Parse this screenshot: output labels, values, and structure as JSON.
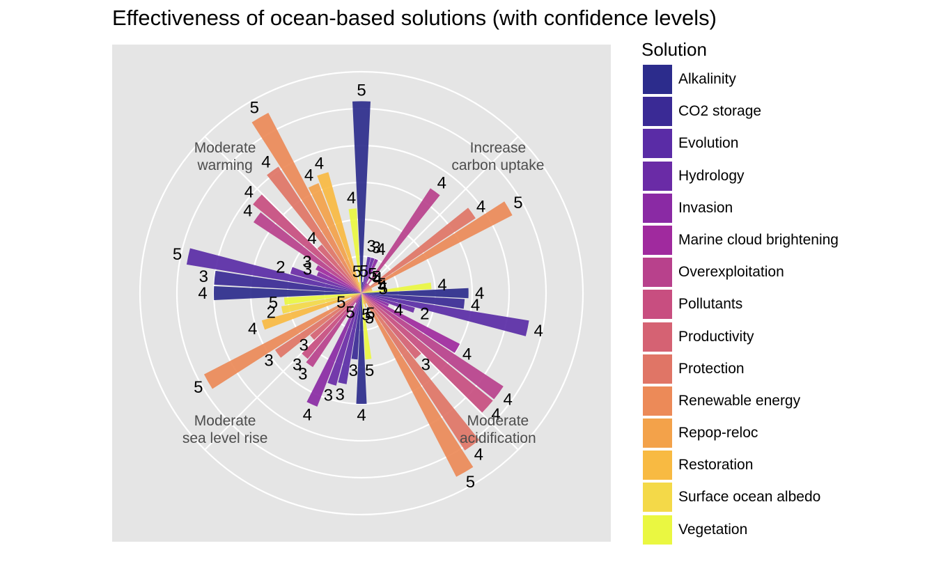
{
  "chart_data": {
    "type": "bar",
    "coord": "polar",
    "title": "Effectiveness of ocean-based solutions (with confidence levels)",
    "xlabel": "",
    "ylabel": "",
    "ylim": [
      0,
      6
    ],
    "grid": true,
    "legend": {
      "title": "Solution",
      "position": "right",
      "entries": [
        {
          "name": "Alkalinity",
          "color": "#2C2C8C"
        },
        {
          "name": "CO2 storage",
          "color": "#3A2A95"
        },
        {
          "name": "Evolution",
          "color": "#5A2CA6"
        },
        {
          "name": "Hydrology",
          "color": "#6A2BA6"
        },
        {
          "name": "Invasion",
          "color": "#8A2AA4"
        },
        {
          "name": "Marine cloud brightening",
          "color": "#A02A9E"
        },
        {
          "name": "Overexploitation",
          "color": "#B8418C"
        },
        {
          "name": "Pollutants",
          "color": "#C84E80"
        },
        {
          "name": "Productivity",
          "color": "#D56273"
        },
        {
          "name": "Protection",
          "color": "#E07566"
        },
        {
          "name": "Renewable energy",
          "color": "#EC8A58"
        },
        {
          "name": "Repop-reloc",
          "color": "#F3A24A"
        },
        {
          "name": "Restoration",
          "color": "#F8BA42"
        },
        {
          "name": "Surface ocean albedo",
          "color": "#F4D948"
        },
        {
          "name": "Vegetation",
          "color": "#EAF741"
        }
      ]
    },
    "categories": [
      "Increase carbon uptake",
      "Moderate acidification",
      "Moderate sea level rise",
      "Moderate warming"
    ],
    "bars": [
      {
        "solution": "Alkalinity",
        "value": 5.2,
        "label": "5"
      },
      {
        "solution": "CO2 storage",
        "value": 0.3,
        "label": "5"
      },
      {
        "solution": "Evolution",
        "value": 1.0,
        "label": "3"
      },
      {
        "solution": "Hydrology",
        "value": 1.0,
        "label": "3"
      },
      {
        "solution": "Invasion",
        "value": 1.0,
        "label": "4"
      },
      {
        "solution": "Marine cloud brightening",
        "value": 0.3,
        "label": "5"
      },
      {
        "solution": "Overexploitation",
        "value": 3.4,
        "label": "4"
      },
      {
        "solution": "Pollutants",
        "value": 0.3,
        "label": "5"
      },
      {
        "solution": "Productivity",
        "value": 0.3,
        "label": "4"
      },
      {
        "solution": "Protection",
        "value": 3.7,
        "label": "4"
      },
      {
        "solution": "Renewable energy",
        "value": 4.6,
        "label": "5"
      },
      {
        "solution": "Repop-reloc",
        "value": 0.3,
        "label": "5"
      },
      {
        "solution": "Restoration",
        "value": 0.3,
        "label": "4"
      },
      {
        "solution": "Surface ocean albedo",
        "value": 0.3,
        "label": "5"
      },
      {
        "solution": "Vegetation",
        "value": 1.9,
        "label": "4"
      },
      {
        "solution": "Alkalinity",
        "value": 2.9,
        "label": "4"
      },
      {
        "solution": "CO2 storage",
        "value": 2.8,
        "label": "4"
      },
      {
        "solution": "Evolution",
        "value": 4.6,
        "label": "4"
      },
      {
        "solution": "Hydrology",
        "value": 1.5,
        "label": "2"
      },
      {
        "solution": "Invasion",
        "value": 0.8,
        "label": "4"
      },
      {
        "solution": "Marine cloud brightening",
        "value": 3.0,
        "label": "4"
      },
      {
        "solution": "Overexploitation",
        "value": 4.6,
        "label": "4"
      },
      {
        "solution": "Pollutants",
        "value": 4.6,
        "label": "4"
      },
      {
        "solution": "Productivity",
        "value": 2.3,
        "label": "3"
      },
      {
        "solution": "Protection",
        "value": 5.1,
        "label": "4"
      },
      {
        "solution": "Renewable energy",
        "value": 5.6,
        "label": "5"
      },
      {
        "solution": "Repop-reloc",
        "value": 0.3,
        "label": "5"
      },
      {
        "solution": "Restoration",
        "value": 0.4,
        "label": "5"
      },
      {
        "solution": "Surface ocean albedo",
        "value": 0.3,
        "label": "5"
      },
      {
        "solution": "Vegetation",
        "value": 1.8,
        "label": "5"
      },
      {
        "solution": "Alkalinity",
        "value": 3.0,
        "label": "4"
      },
      {
        "solution": "CO2 storage",
        "value": 1.8,
        "label": "3"
      },
      {
        "solution": "Evolution",
        "value": 2.5,
        "label": "3"
      },
      {
        "solution": "Hydrology",
        "value": 2.6,
        "label": "3"
      },
      {
        "solution": "Invasion",
        "value": 3.3,
        "label": "4"
      },
      {
        "solution": "Marine cloud brightening",
        "value": 0.3,
        "label": "5"
      },
      {
        "solution": "Overexploitation",
        "value": 2.4,
        "label": "3"
      },
      {
        "solution": "Pollutants",
        "value": 2.3,
        "label": "3"
      },
      {
        "solution": "Productivity",
        "value": 1.8,
        "label": "3"
      },
      {
        "solution": "Protection",
        "value": 2.8,
        "label": "3"
      },
      {
        "solution": "Renewable energy",
        "value": 4.8,
        "label": "5"
      },
      {
        "solution": "Repop-reloc",
        "value": 0.3,
        "label": "5"
      },
      {
        "solution": "Restoration",
        "value": 2.8,
        "label": "4"
      },
      {
        "solution": "Surface ocean albedo",
        "value": 2.2,
        "label": "2"
      },
      {
        "solution": "Vegetation",
        "value": 2.1,
        "label": "5"
      },
      {
        "solution": "Alkalinity",
        "value": 4.0,
        "label": "4"
      },
      {
        "solution": "CO2 storage",
        "value": 4.0,
        "label": "3"
      },
      {
        "solution": "Evolution",
        "value": 4.8,
        "label": "5"
      },
      {
        "solution": "Hydrology",
        "value": 2.0,
        "label": "2"
      },
      {
        "solution": "Invasion",
        "value": 1.3,
        "label": "3"
      },
      {
        "solution": "Marine cloud brightening",
        "value": 1.4,
        "label": "3"
      },
      {
        "solution": "Overexploitation",
        "value": 3.5,
        "label": "4"
      },
      {
        "solution": "Pollutants",
        "value": 3.8,
        "label": "4"
      },
      {
        "solution": "Productivity",
        "value": 1.7,
        "label": "4"
      },
      {
        "solution": "Protection",
        "value": 4.1,
        "label": "4"
      },
      {
        "solution": "Renewable energy",
        "value": 5.5,
        "label": "5"
      },
      {
        "solution": "Repop-reloc",
        "value": 3.2,
        "label": "4"
      },
      {
        "solution": "Restoration",
        "value": 3.4,
        "label": "4"
      },
      {
        "solution": "Surface ocean albedo",
        "value": 0.3,
        "label": "5"
      },
      {
        "solution": "Vegetation",
        "value": 2.3,
        "label": "4"
      }
    ]
  }
}
